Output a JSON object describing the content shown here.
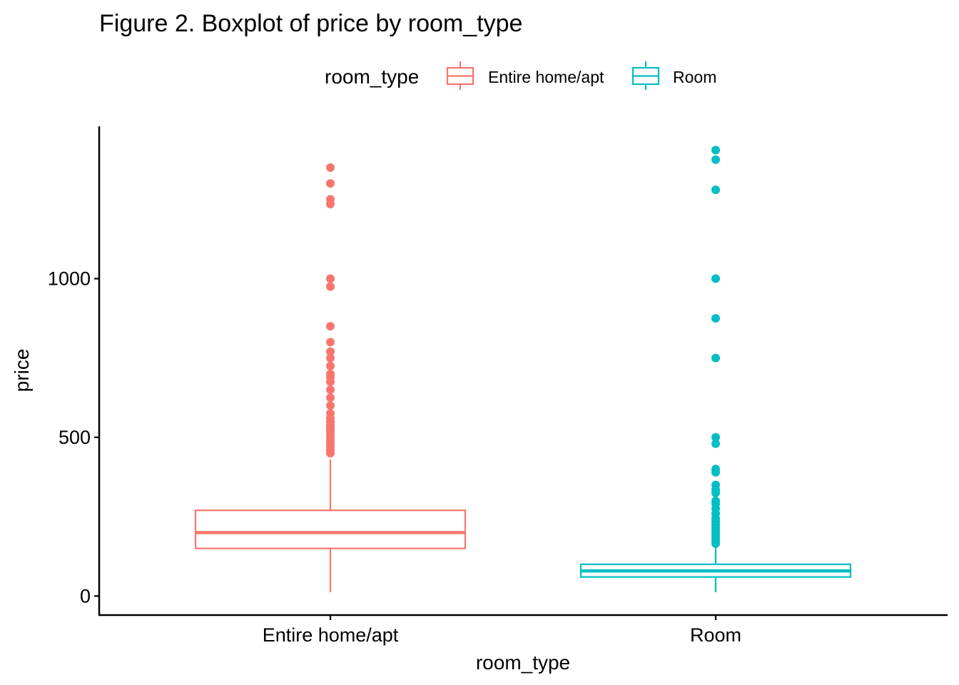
{
  "chart_data": {
    "type": "boxplot",
    "title": "Figure 2. Boxplot of price by room_type",
    "xlabel": "room_type",
    "ylabel": "price",
    "ylim": [
      -60,
      1480
    ],
    "y_ticks": [
      0,
      500,
      1000
    ],
    "legend": {
      "title": "room_type",
      "position": "top"
    },
    "grid": false,
    "categories": [
      "Entire home/apt",
      "Room"
    ],
    "series": [
      {
        "name": "Entire home/apt",
        "color": "#F8766D",
        "whisker_low": 12,
        "q1": 150,
        "median": 200,
        "q3": 270,
        "whisker_high": 430,
        "outliers": [
          450,
          460,
          470,
          480,
          490,
          500,
          510,
          520,
          530,
          540,
          550,
          560,
          575,
          600,
          625,
          650,
          675,
          690,
          700,
          725,
          750,
          770,
          800,
          850,
          975,
          1000,
          1235,
          1250,
          1300,
          1350
        ]
      },
      {
        "name": "Room",
        "color": "#00BFC4",
        "whisker_low": 12,
        "q1": 60,
        "median": 79,
        "q3": 100,
        "whisker_high": 160,
        "outliers": [
          165,
          175,
          185,
          195,
          205,
          215,
          225,
          235,
          245,
          260,
          275,
          290,
          300,
          325,
          335,
          350,
          390,
          400,
          480,
          500,
          750,
          875,
          1000,
          1280,
          1375,
          1405
        ]
      }
    ]
  }
}
